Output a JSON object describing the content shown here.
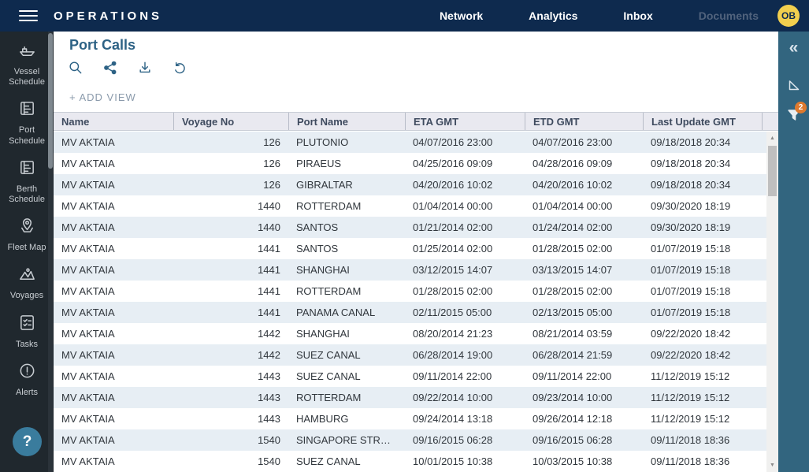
{
  "topbar": {
    "brand": "OPERATIONS",
    "nav": [
      {
        "label": "Network",
        "enabled": true
      },
      {
        "label": "Analytics",
        "enabled": true
      },
      {
        "label": "Inbox",
        "enabled": true
      },
      {
        "label": "Documents",
        "enabled": false
      }
    ],
    "avatar_initials": "OB"
  },
  "sidebar": {
    "items": [
      {
        "icon": "vessel-schedule-icon",
        "label": "Vessel Schedule"
      },
      {
        "icon": "port-schedule-icon",
        "label": "Port Schedule"
      },
      {
        "icon": "berth-schedule-icon",
        "label": "Berth Schedule"
      },
      {
        "icon": "fleet-map-icon",
        "label": "Fleet Map"
      },
      {
        "icon": "voyages-icon",
        "label": "Voyages"
      },
      {
        "icon": "tasks-icon",
        "label": "Tasks"
      },
      {
        "icon": "alerts-icon",
        "label": "Alerts"
      }
    ],
    "help_label": "?"
  },
  "main": {
    "title": "Port Calls",
    "toolbar_icons": [
      "search-icon",
      "share-icon",
      "download-icon",
      "undo-icon"
    ],
    "add_view_label": "+ ADD VIEW",
    "table": {
      "columns": [
        "Name",
        "Voyage No",
        "Port Name",
        "ETA GMT",
        "ETD GMT",
        "Last Update GMT"
      ],
      "rows": [
        [
          "MV AKTAIA",
          "126",
          "PLUTONIO",
          "04/07/2016 23:00",
          "04/07/2016 23:00",
          "09/18/2018 20:34"
        ],
        [
          "MV AKTAIA",
          "126",
          "PIRAEUS",
          "04/25/2016 09:09",
          "04/28/2016 09:09",
          "09/18/2018 20:34"
        ],
        [
          "MV AKTAIA",
          "126",
          "GIBRALTAR",
          "04/20/2016 10:02",
          "04/20/2016 10:02",
          "09/18/2018 20:34"
        ],
        [
          "MV AKTAIA",
          "1440",
          "ROTTERDAM",
          "01/04/2014 00:00",
          "01/04/2014 00:00",
          "09/30/2020 18:19"
        ],
        [
          "MV AKTAIA",
          "1440",
          "SANTOS",
          "01/21/2014 02:00",
          "01/24/2014 02:00",
          "09/30/2020 18:19"
        ],
        [
          "MV AKTAIA",
          "1441",
          "SANTOS",
          "01/25/2014 02:00",
          "01/28/2015 02:00",
          "01/07/2019 15:18"
        ],
        [
          "MV AKTAIA",
          "1441",
          "SHANGHAI",
          "03/12/2015 14:07",
          "03/13/2015 14:07",
          "01/07/2019 15:18"
        ],
        [
          "MV AKTAIA",
          "1441",
          "ROTTERDAM",
          "01/28/2015 02:00",
          "01/28/2015 02:00",
          "01/07/2019 15:18"
        ],
        [
          "MV AKTAIA",
          "1441",
          "PANAMA CANAL",
          "02/11/2015 05:00",
          "02/13/2015 05:00",
          "01/07/2019 15:18"
        ],
        [
          "MV AKTAIA",
          "1442",
          "SHANGHAI",
          "08/20/2014 21:23",
          "08/21/2014 03:59",
          "09/22/2020 18:42"
        ],
        [
          "MV AKTAIA",
          "1442",
          "SUEZ CANAL",
          "06/28/2014 19:00",
          "06/28/2014 21:59",
          "09/22/2020 18:42"
        ],
        [
          "MV AKTAIA",
          "1443",
          "SUEZ CANAL",
          "09/11/2014 22:00",
          "09/11/2014 22:00",
          "11/12/2019 15:12"
        ],
        [
          "MV AKTAIA",
          "1443",
          "ROTTERDAM",
          "09/22/2014 10:00",
          "09/23/2014 10:00",
          "11/12/2019 15:12"
        ],
        [
          "MV AKTAIA",
          "1443",
          "HAMBURG",
          "09/24/2014 13:18",
          "09/26/2014 12:18",
          "11/12/2019 15:12"
        ],
        [
          "MV AKTAIA",
          "1540",
          "SINGAPORE STR…",
          "09/16/2015 06:28",
          "09/16/2015 06:28",
          "09/11/2018 18:36"
        ],
        [
          "MV AKTAIA",
          "1540",
          "SUEZ CANAL",
          "10/01/2015 10:38",
          "10/03/2015 10:38",
          "09/11/2018 18:36"
        ]
      ]
    }
  },
  "right_rail": {
    "collapse_glyph": "«",
    "icons": [
      "collapse-icon",
      "set-square-icon",
      "filter-icon"
    ],
    "filter_badge_count": "2"
  },
  "colors": {
    "topbar_bg": "#0e2a4e",
    "sidebar_bg": "#20282e",
    "right_rail_bg": "#32657f",
    "accent_steel_blue": "#2d6285",
    "row_alt_bg": "#e7eef4",
    "table_header_bg": "#e9e9f0",
    "badge_orange": "#dd7a2f",
    "avatar_yellow": "#f1cf4e",
    "help_button_bg": "#3a7c9d"
  }
}
